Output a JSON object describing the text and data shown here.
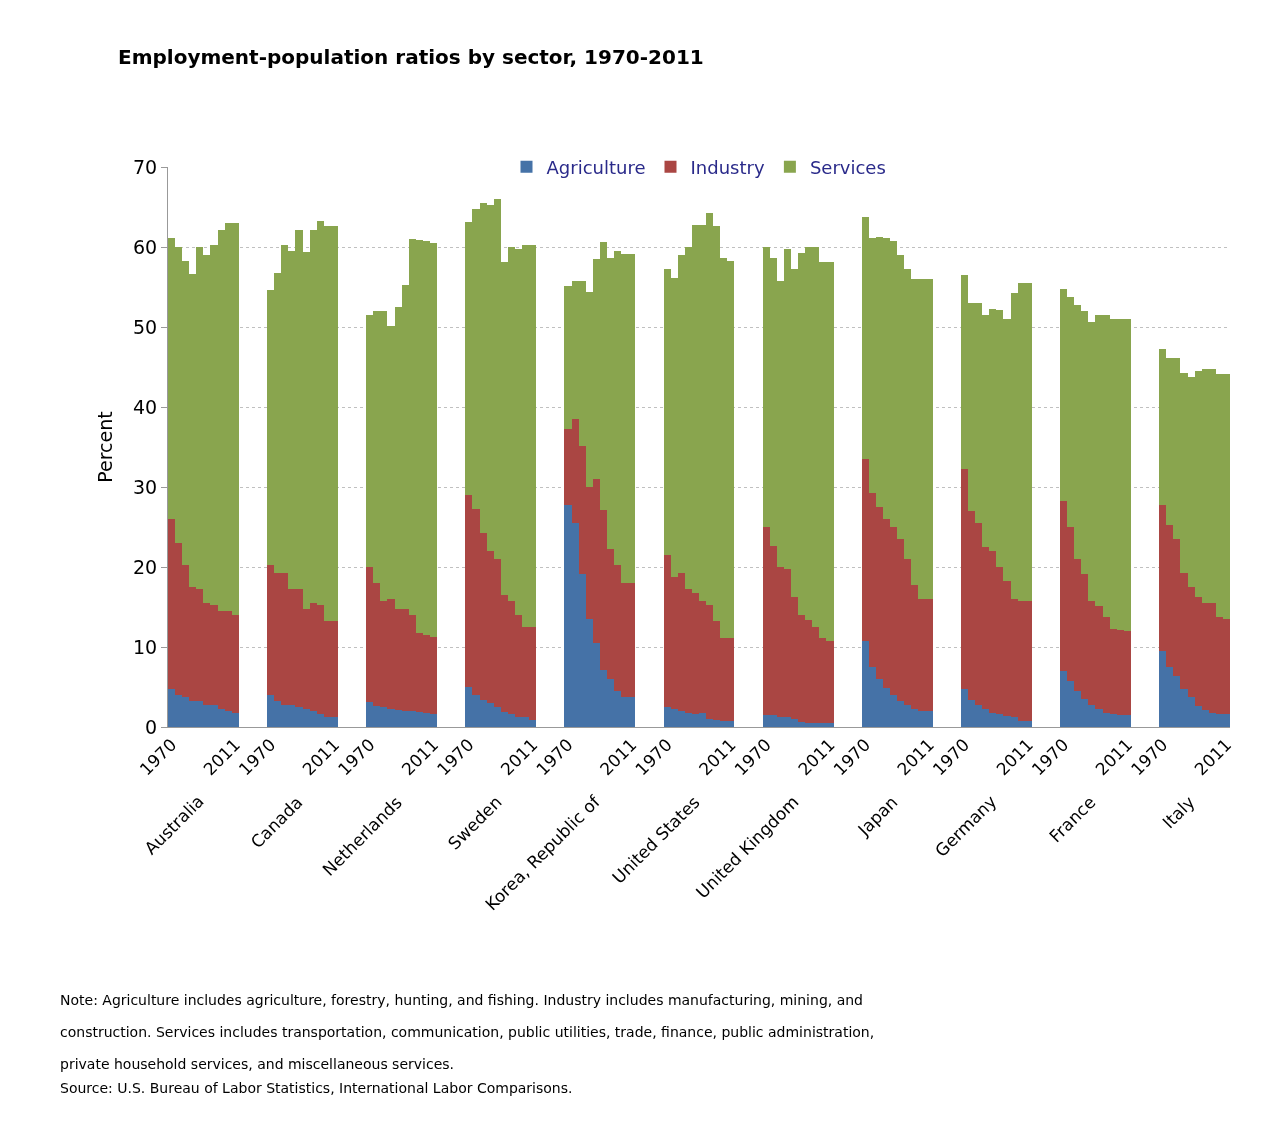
{
  "chart_data": {
    "type": "bar",
    "stacked": true,
    "title": "Employment-population ratios by sector, 1970-2011",
    "ylabel": "Percent",
    "ylim": [
      0,
      70
    ],
    "yticks": [
      0,
      10,
      20,
      30,
      40,
      50,
      60,
      70
    ],
    "grid": "y",
    "legend": "top",
    "categories": [
      "1970",
      null,
      null,
      null,
      null,
      null,
      null,
      null,
      null,
      "2011",
      null,
      null,
      null,
      null,
      "1970",
      null,
      null,
      null,
      null,
      null,
      null,
      null,
      null,
      "2011",
      null,
      null,
      null,
      null,
      "1970",
      null,
      null,
      null,
      null,
      null,
      null,
      null,
      null,
      "2011",
      null,
      null,
      null,
      null,
      "1970",
      null,
      null,
      null,
      null,
      null,
      null,
      null,
      null,
      "2011",
      null,
      null,
      null,
      null,
      "1970",
      null,
      null,
      null,
      null,
      null,
      null,
      null,
      null,
      "2011",
      null,
      null,
      null,
      null,
      "1970",
      null,
      null,
      null,
      null,
      null,
      null,
      null,
      null,
      "2011",
      null,
      null,
      null,
      null,
      "1970",
      null,
      null,
      null,
      null,
      null,
      null,
      null,
      null,
      "2011",
      null,
      null,
      null,
      null,
      "1970",
      null,
      null,
      null,
      null,
      null,
      null,
      null,
      null,
      "2011",
      null,
      null,
      null,
      null,
      "1970",
      null,
      null,
      null,
      null,
      null,
      null,
      null,
      null,
      "2011",
      null,
      null,
      null,
      null,
      "1970",
      null,
      null,
      null,
      null,
      null,
      null,
      null,
      null,
      "2011",
      null,
      null,
      null,
      null,
      "1970",
      null,
      null,
      null,
      null,
      null,
      null,
      null,
      null,
      "2011"
    ],
    "series": [
      {
        "name": "Agriculture",
        "color": "#4572a7",
        "values": [
          4.7,
          4.0,
          3.8,
          3.2,
          3.2,
          2.7,
          2.7,
          2.3,
          2.0,
          1.7,
          null,
          null,
          null,
          null,
          4.0,
          3.2,
          2.7,
          2.7,
          2.5,
          2.3,
          2.0,
          1.6,
          1.3,
          1.3,
          null,
          null,
          null,
          null,
          3.1,
          2.6,
          2.5,
          2.3,
          2.1,
          2.0,
          2.0,
          1.9,
          1.8,
          1.6,
          null,
          null,
          null,
          null,
          5.0,
          4.0,
          3.4,
          3.0,
          2.5,
          1.9,
          1.6,
          1.3,
          1.2,
          0.9,
          null,
          null,
          null,
          null,
          27.8,
          25.5,
          19.1,
          13.5,
          10.5,
          7.1,
          6.0,
          4.5,
          3.8,
          3.8,
          null,
          null,
          null,
          null,
          2.5,
          2.3,
          2.0,
          1.8,
          1.6,
          1.8,
          1.0,
          0.9,
          0.8,
          0.8,
          null,
          null,
          null,
          null,
          1.5,
          1.5,
          1.3,
          1.3,
          1.0,
          0.6,
          0.5,
          0.5,
          0.5,
          0.5,
          null,
          null,
          null,
          null,
          10.7,
          7.5,
          6.0,
          4.9,
          4.0,
          3.3,
          2.7,
          2.2,
          2.0,
          2.0,
          null,
          null,
          null,
          null,
          4.7,
          3.4,
          2.7,
          2.2,
          1.8,
          1.6,
          1.4,
          1.2,
          0.8,
          0.8,
          null,
          null,
          null,
          null,
          7.0,
          5.7,
          4.5,
          3.5,
          2.7,
          2.3,
          1.8,
          1.6,
          1.5,
          1.5,
          null,
          null,
          null,
          null,
          9.5,
          7.5,
          6.4,
          4.8,
          3.8,
          2.6,
          2.1,
          1.8,
          1.6,
          1.6
        ]
      },
      {
        "name": "Industry",
        "color": "#aa4643",
        "values": [
          21.3,
          19.0,
          16.5,
          14.3,
          14.1,
          12.8,
          12.5,
          12.2,
          12.5,
          12.3,
          null,
          null,
          null,
          null,
          16.3,
          16.1,
          16.6,
          14.6,
          14.8,
          12.5,
          13.5,
          13.7,
          12.0,
          12.0,
          null,
          null,
          null,
          null,
          16.9,
          15.4,
          13.3,
          13.7,
          12.7,
          12.8,
          12.0,
          9.9,
          9.7,
          9.7,
          null,
          null,
          null,
          null,
          24.0,
          23.3,
          20.8,
          19.0,
          18.5,
          14.6,
          14.2,
          12.7,
          11.3,
          11.6,
          null,
          null,
          null,
          null,
          9.5,
          13.0,
          16.0,
          16.5,
          20.5,
          20.0,
          16.3,
          15.7,
          14.2,
          14.2,
          null,
          null,
          null,
          null,
          19.0,
          16.5,
          17.3,
          15.5,
          15.1,
          14.0,
          14.3,
          12.4,
          10.3,
          10.3,
          null,
          null,
          null,
          null,
          23.5,
          21.1,
          18.7,
          18.5,
          15.2,
          13.4,
          12.9,
          12.0,
          10.6,
          10.3,
          null,
          null,
          null,
          null,
          22.8,
          21.8,
          21.5,
          21.1,
          21.0,
          20.2,
          18.3,
          15.5,
          14.0,
          14.0,
          null,
          null,
          null,
          null,
          27.5,
          23.6,
          22.8,
          20.3,
          20.2,
          18.4,
          16.9,
          14.8,
          15.0,
          15.0,
          null,
          null,
          null,
          null,
          21.2,
          19.3,
          16.5,
          15.6,
          13.1,
          12.8,
          11.9,
          10.6,
          10.6,
          10.5,
          null,
          null,
          null,
          null,
          18.3,
          17.8,
          17.1,
          14.5,
          13.7,
          13.7,
          13.4,
          13.7,
          12.1,
          11.9
        ]
      },
      {
        "name": "Services",
        "color": "#89a54e",
        "values": [
          35.1,
          37.0,
          38.0,
          39.1,
          42.7,
          43.5,
          45.1,
          47.6,
          48.5,
          49.0,
          null,
          null,
          null,
          null,
          34.3,
          37.5,
          41.0,
          42.2,
          44.8,
          44.6,
          46.6,
          48.0,
          49.3,
          49.3,
          null,
          null,
          null,
          null,
          31.5,
          34.0,
          36.2,
          34.1,
          37.7,
          40.5,
          47.0,
          49.1,
          49.3,
          49.2,
          null,
          null,
          null,
          null,
          34.1,
          37.5,
          41.3,
          43.2,
          45.0,
          41.6,
          44.2,
          45.8,
          47.7,
          47.7,
          null,
          null,
          null,
          null,
          17.8,
          17.3,
          20.7,
          24.4,
          27.5,
          33.5,
          36.3,
          39.3,
          41.1,
          41.1,
          null,
          null,
          null,
          null,
          35.7,
          37.3,
          39.7,
          42.7,
          46.1,
          47.0,
          48.9,
          49.3,
          47.5,
          47.2,
          null,
          null,
          null,
          null,
          35.0,
          36.0,
          35.7,
          40.0,
          41.0,
          45.3,
          46.6,
          47.5,
          47.0,
          47.3,
          null,
          null,
          null,
          null,
          30.3,
          31.8,
          33.8,
          35.1,
          35.8,
          35.5,
          36.2,
          38.3,
          40.0,
          40.0,
          null,
          null,
          null,
          null,
          24.3,
          26.0,
          27.5,
          29.0,
          30.2,
          32.1,
          32.7,
          38.3,
          39.7,
          39.7,
          null,
          null,
          null,
          null,
          26.5,
          28.8,
          31.8,
          32.9,
          34.8,
          36.4,
          37.8,
          38.8,
          38.9,
          39.0,
          null,
          null,
          null,
          null,
          19.5,
          20.8,
          22.6,
          24.9,
          26.2,
          28.2,
          29.3,
          29.3,
          30.4,
          30.6
        ]
      }
    ],
    "annotations": [
      "Australia",
      "Canada",
      "Netherlands",
      "Sweden",
      "Korea, Republic of",
      "United States",
      "United Kingdom",
      "Japan",
      "Germany",
      "France",
      "Italy",
      "Note: Agriculture includes agriculture, forestry, hunting, and fishing. Industry includes manufacturing, mining, and construction. Services includes transportation, communication, public utilities, trade, finance, public administration, private household services, and miscellaneous services.",
      "Source: U.S. Bureau of Labor Statistics, International Labor Comparisons."
    ]
  }
}
